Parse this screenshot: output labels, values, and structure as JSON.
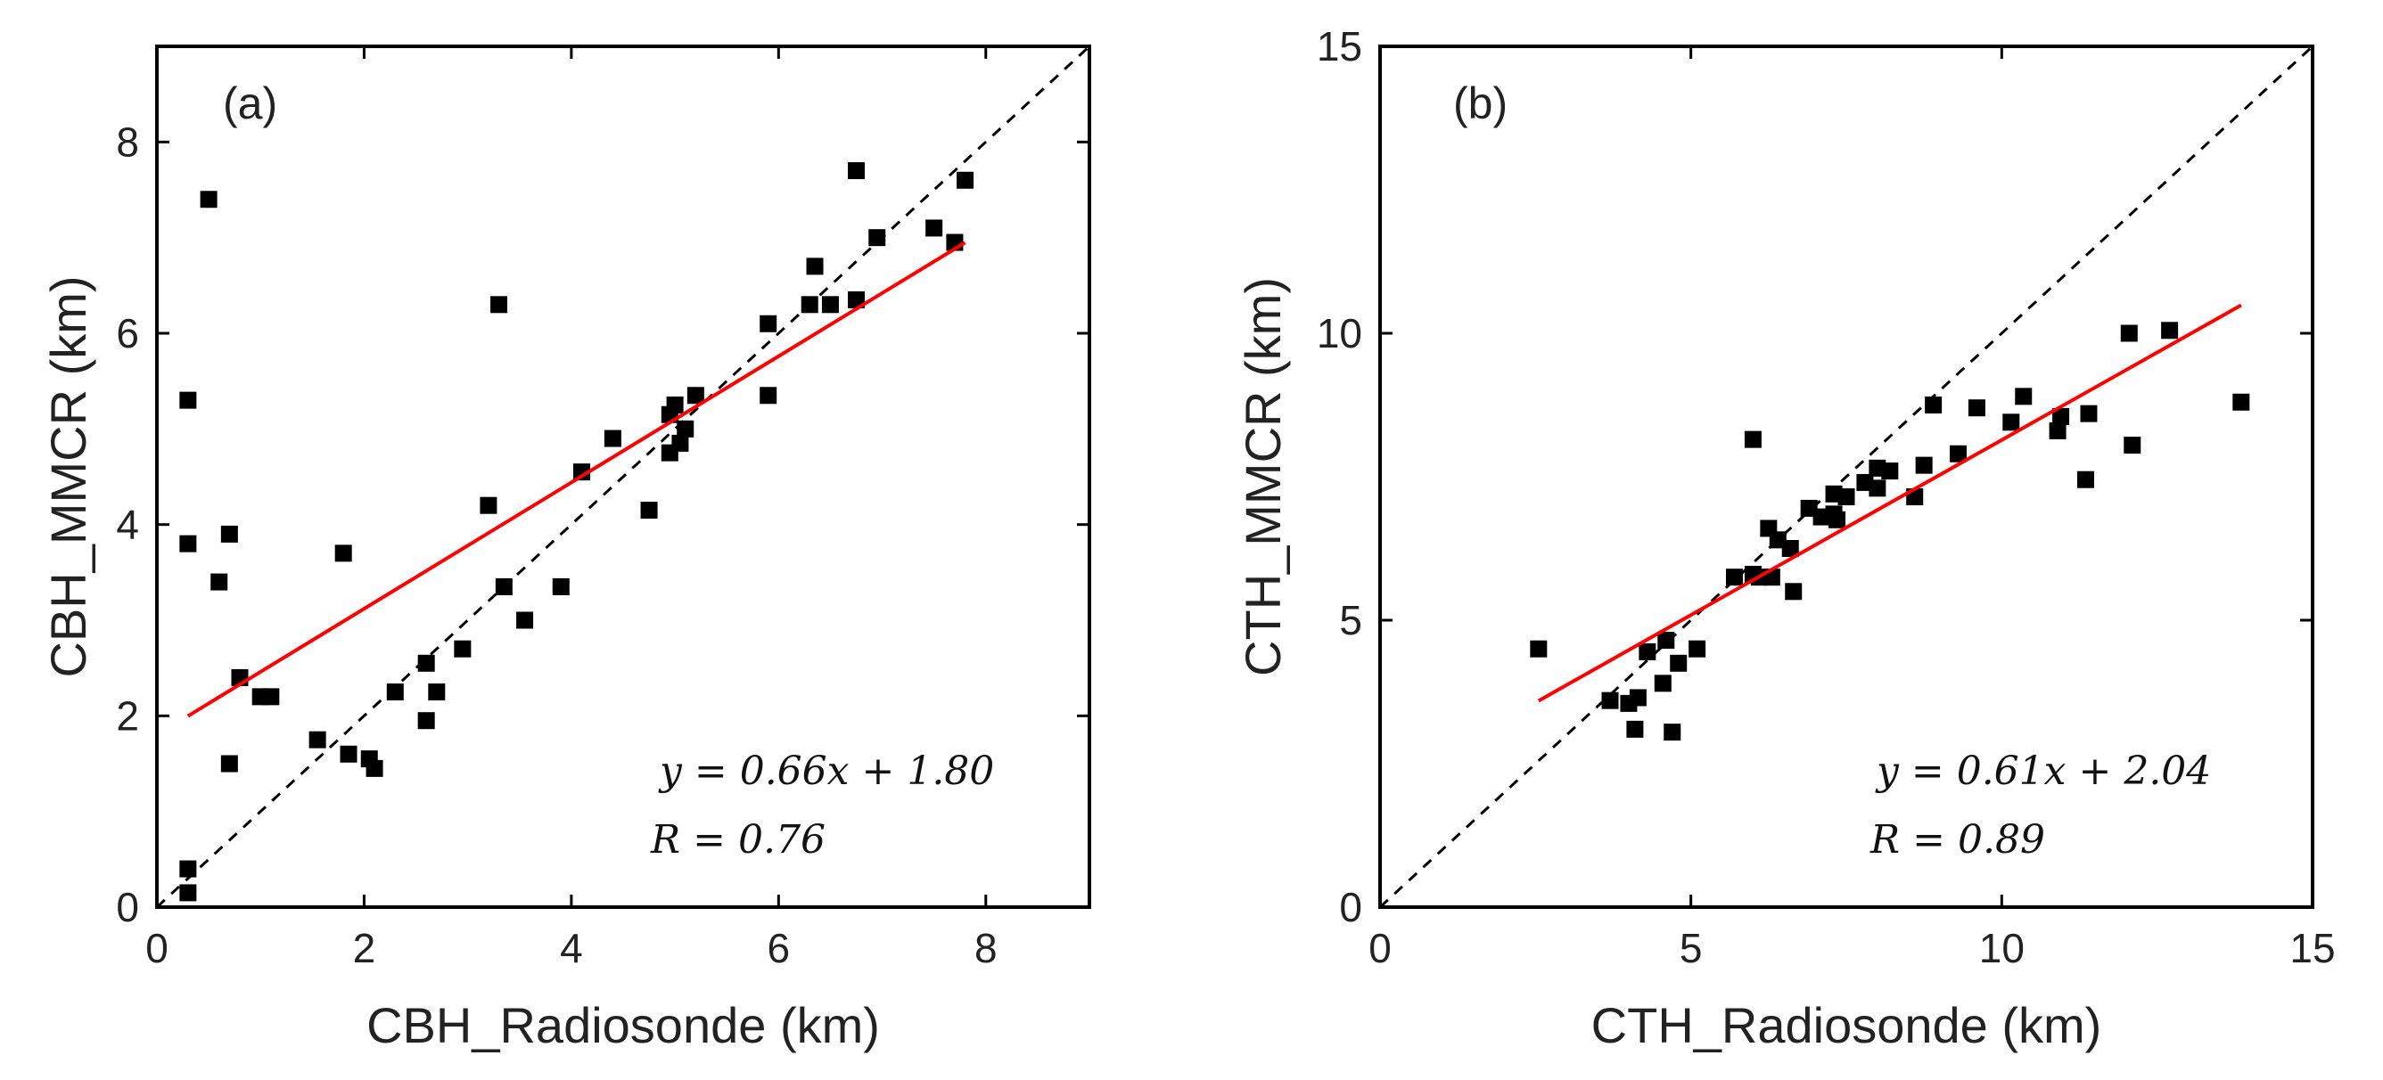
{
  "chart_data": [
    {
      "type": "scatter",
      "panel_label": "(a)",
      "xlabel": "CBH_Radiosonde (km)",
      "ylabel": "CBH_MMCR (km)",
      "xlim": [
        0,
        9
      ],
      "ylim": [
        0,
        9
      ],
      "xticks": [
        0,
        2,
        4,
        6,
        8
      ],
      "yticks": [
        0,
        2,
        4,
        6,
        8
      ],
      "grid": false,
      "legend": "none",
      "annotation_equation": "y = 0.66x + 1.80",
      "annotation_r": "R = 0.76",
      "points": [
        [
          0.3,
          0.15
        ],
        [
          0.3,
          0.4
        ],
        [
          0.3,
          3.8
        ],
        [
          0.3,
          5.3
        ],
        [
          0.5,
          7.4
        ],
        [
          0.6,
          3.4
        ],
        [
          0.7,
          1.5
        ],
        [
          0.7,
          3.9
        ],
        [
          0.8,
          2.4
        ],
        [
          1.0,
          2.2
        ],
        [
          1.1,
          2.2
        ],
        [
          1.55,
          1.75
        ],
        [
          1.8,
          3.7
        ],
        [
          1.85,
          1.6
        ],
        [
          2.05,
          1.55
        ],
        [
          2.1,
          1.45
        ],
        [
          2.3,
          2.25
        ],
        [
          2.6,
          1.95
        ],
        [
          2.6,
          2.55
        ],
        [
          2.7,
          2.25
        ],
        [
          2.95,
          2.7
        ],
        [
          3.2,
          4.2
        ],
        [
          3.3,
          6.3
        ],
        [
          3.35,
          3.35
        ],
        [
          3.55,
          3.0
        ],
        [
          3.9,
          3.35
        ],
        [
          4.1,
          4.55
        ],
        [
          4.4,
          4.9
        ],
        [
          4.75,
          4.15
        ],
        [
          4.95,
          5.15
        ],
        [
          4.95,
          4.75
        ],
        [
          5.0,
          5.25
        ],
        [
          5.05,
          4.85
        ],
        [
          5.1,
          5.0
        ],
        [
          5.2,
          5.35
        ],
        [
          5.9,
          5.35
        ],
        [
          5.9,
          6.1
        ],
        [
          6.3,
          6.3
        ],
        [
          6.35,
          6.7
        ],
        [
          6.5,
          6.3
        ],
        [
          6.75,
          6.35
        ],
        [
          6.75,
          7.7
        ],
        [
          6.95,
          7.0
        ],
        [
          7.5,
          7.1
        ],
        [
          7.7,
          6.95
        ],
        [
          7.8,
          7.6
        ]
      ],
      "fit": {
        "slope": 0.66,
        "intercept": 1.8,
        "x_range": [
          0.3,
          7.8
        ],
        "color": "#ff0000"
      },
      "reference": {
        "line": "1:1",
        "style": "dashed",
        "color": "#000000"
      }
    },
    {
      "type": "scatter",
      "panel_label": "(b)",
      "xlabel": "CTH_Radiosonde (km)",
      "ylabel": "CTH_MMCR (km)",
      "xlim": [
        0,
        15
      ],
      "ylim": [
        0,
        15
      ],
      "xticks": [
        0,
        5,
        10,
        15
      ],
      "yticks": [
        0,
        5,
        10,
        15
      ],
      "grid": false,
      "legend": "none",
      "annotation_equation": "y = 0.61x + 2.04",
      "annotation_r": "R = 0.89",
      "points": [
        [
          2.55,
          4.5
        ],
        [
          3.7,
          3.6
        ],
        [
          4.0,
          3.55
        ],
        [
          4.1,
          3.1
        ],
        [
          4.15,
          3.65
        ],
        [
          4.3,
          4.45
        ],
        [
          4.55,
          3.9
        ],
        [
          4.6,
          4.65
        ],
        [
          4.7,
          3.05
        ],
        [
          4.8,
          4.25
        ],
        [
          5.1,
          4.5
        ],
        [
          5.7,
          5.75
        ],
        [
          6.0,
          8.15
        ],
        [
          6.0,
          5.8
        ],
        [
          6.1,
          5.75
        ],
        [
          6.25,
          6.6
        ],
        [
          6.3,
          5.75
        ],
        [
          6.4,
          6.4
        ],
        [
          6.6,
          6.25
        ],
        [
          6.65,
          5.5
        ],
        [
          6.9,
          6.95
        ],
        [
          7.1,
          6.8
        ],
        [
          7.3,
          6.85
        ],
        [
          7.3,
          7.2
        ],
        [
          7.35,
          6.75
        ],
        [
          7.5,
          7.15
        ],
        [
          7.8,
          7.4
        ],
        [
          8.0,
          7.3
        ],
        [
          8.0,
          7.65
        ],
        [
          8.2,
          7.6
        ],
        [
          8.6,
          7.15
        ],
        [
          8.75,
          7.7
        ],
        [
          8.9,
          8.75
        ],
        [
          9.3,
          7.9
        ],
        [
          9.6,
          8.7
        ],
        [
          10.15,
          8.45
        ],
        [
          10.35,
          8.9
        ],
        [
          10.9,
          8.3
        ],
        [
          10.95,
          8.55
        ],
        [
          11.35,
          7.45
        ],
        [
          11.4,
          8.6
        ],
        [
          12.05,
          10.0
        ],
        [
          12.1,
          8.05
        ],
        [
          12.7,
          10.05
        ],
        [
          13.85,
          8.8
        ]
      ],
      "fit": {
        "slope": 0.61,
        "intercept": 2.04,
        "x_range": [
          2.55,
          13.85
        ],
        "color": "#ff0000"
      },
      "reference": {
        "line": "1:1",
        "style": "dashed",
        "color": "#000000"
      }
    }
  ]
}
